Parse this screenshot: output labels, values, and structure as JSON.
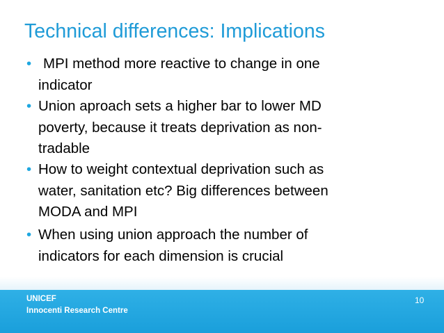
{
  "slide": {
    "title": "Technical differences: Implications",
    "bullets": [
      [
        "MPI method more reactive to change in one",
        "indicator"
      ],
      [
        "Union aproach sets a higher bar to lower MD",
        "poverty, because it treats deprivation as non-",
        "tradable"
      ],
      [
        "How to weight contextual deprivation such as",
        "water, sanitation etc? Big differences between",
        "MODA and MPI"
      ],
      [
        "When using union approach the number of",
        "indicators for each dimension is crucial"
      ]
    ],
    "footer": {
      "org": "UNICEF",
      "centre": "Innocenti Research Centre",
      "page": "10"
    }
  }
}
